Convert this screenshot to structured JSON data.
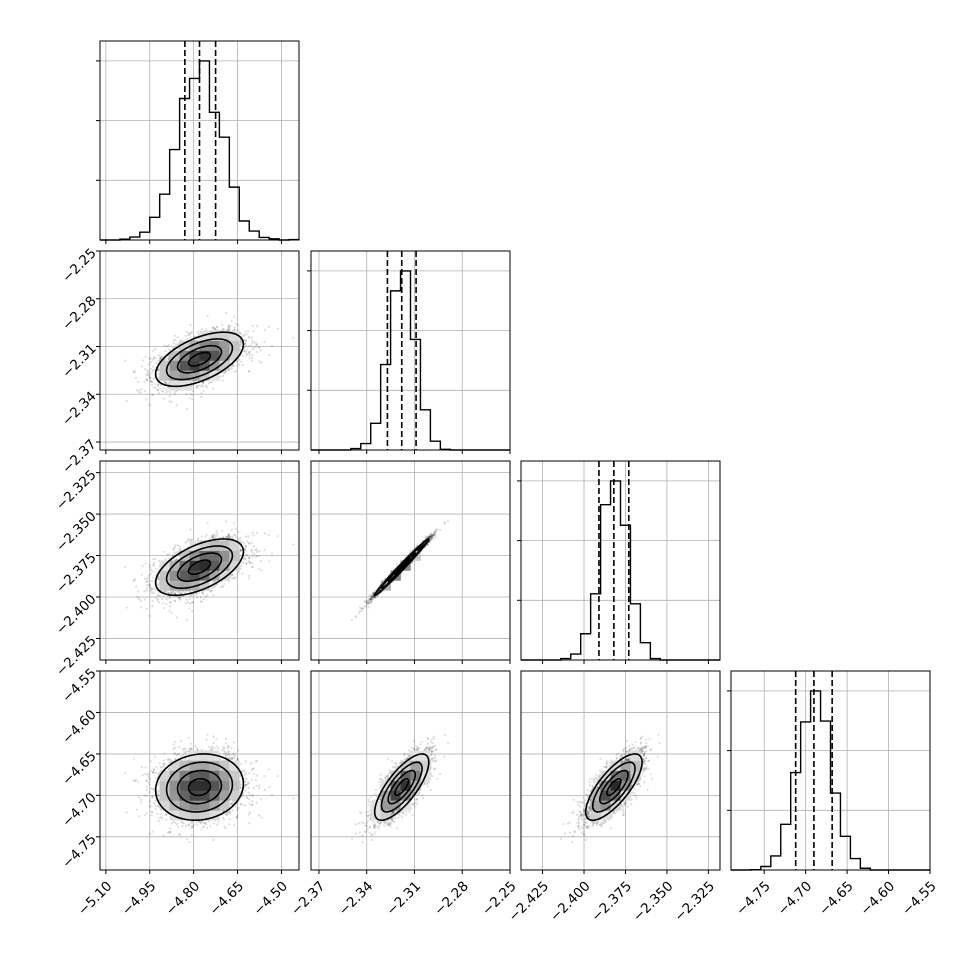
{
  "chart_data": {
    "type": "corner",
    "parameters": [
      {
        "index": 0,
        "mean": -4.78,
        "std": 0.075,
        "quantiles": [
          -4.83,
          -4.78,
          -4.725
        ],
        "range": [
          -5.12,
          -4.44
        ],
        "ticks": [
          {
            "value": -5.1,
            "label": "−5.10"
          },
          {
            "value": -4.95,
            "label": "−4.95"
          },
          {
            "value": -4.8,
            "label": "−4.80"
          },
          {
            "value": -4.65,
            "label": "−4.65"
          },
          {
            "value": -4.5,
            "label": "−4.50"
          }
        ]
      },
      {
        "index": 1,
        "mean": -2.318,
        "std": 0.0085,
        "quantiles": [
          -2.327,
          -2.318,
          -2.309
        ],
        "range": [
          -2.375,
          -2.25
        ],
        "ticks": [
          {
            "value": -2.37,
            "label": "−2.37"
          },
          {
            "value": -2.34,
            "label": "−2.34"
          },
          {
            "value": -2.31,
            "label": "−2.31"
          },
          {
            "value": -2.28,
            "label": "−2.28"
          },
          {
            "value": -2.25,
            "label": "−2.25"
          }
        ]
      },
      {
        "index": 2,
        "mean": -2.382,
        "std": 0.0085,
        "quantiles": [
          -2.391,
          -2.382,
          -2.373
        ],
        "range": [
          -2.438,
          -2.318
        ],
        "ticks": [
          {
            "value": -2.425,
            "label": "−2.425"
          },
          {
            "value": -2.4,
            "label": "−2.400"
          },
          {
            "value": -2.375,
            "label": "−2.375"
          },
          {
            "value": -2.35,
            "label": "−2.350"
          },
          {
            "value": -2.325,
            "label": "−2.325"
          }
        ]
      },
      {
        "index": 3,
        "mean": -4.69,
        "std": 0.02,
        "quantiles": [
          -4.712,
          -4.69,
          -4.668
        ],
        "range": [
          -4.79,
          -4.55
        ],
        "ticks": [
          {
            "value": -4.75,
            "label": "−4.75"
          },
          {
            "value": -4.7,
            "label": "−4.70"
          },
          {
            "value": -4.65,
            "label": "−4.65"
          },
          {
            "value": -4.6,
            "label": "−4.60"
          },
          {
            "value": -4.55,
            "label": "−4.55"
          }
        ]
      }
    ],
    "row_ticks": [
      null,
      [
        {
          "value": -2.25,
          "label": "−2.25"
        },
        {
          "value": -2.28,
          "label": "−2.28"
        },
        {
          "value": -2.31,
          "label": "−2.31"
        },
        {
          "value": -2.34,
          "label": "−2.34"
        },
        {
          "value": -2.37,
          "label": "−2.37"
        }
      ],
      [
        {
          "value": -2.325,
          "label": "−2.325"
        },
        {
          "value": -2.35,
          "label": "−2.350"
        },
        {
          "value": -2.375,
          "label": "−2.375"
        },
        {
          "value": -2.4,
          "label": "−2.400"
        },
        {
          "value": -2.425,
          "label": "−2.425"
        }
      ],
      [
        {
          "value": -4.55,
          "label": "−4.55"
        },
        {
          "value": -4.6,
          "label": "−4.60"
        },
        {
          "value": -4.65,
          "label": "−4.65"
        },
        {
          "value": -4.7,
          "label": "−4.70"
        },
        {
          "value": -4.75,
          "label": "−4.75"
        }
      ]
    ],
    "correlations": [
      [
        1.0,
        0.55,
        0.55,
        0.1
      ],
      [
        0.55,
        1.0,
        0.99,
        0.75
      ],
      [
        0.55,
        0.99,
        1.0,
        0.75
      ],
      [
        0.1,
        0.75,
        0.75,
        1.0
      ]
    ],
    "histogram_bins": 20,
    "contour_levels_sigma": [
      0.5,
      1.0,
      1.5,
      2.0
    ],
    "grid": true,
    "colors": {
      "ink": "#000000",
      "grid": "#b0b0b0",
      "background": "#ffffff"
    }
  }
}
